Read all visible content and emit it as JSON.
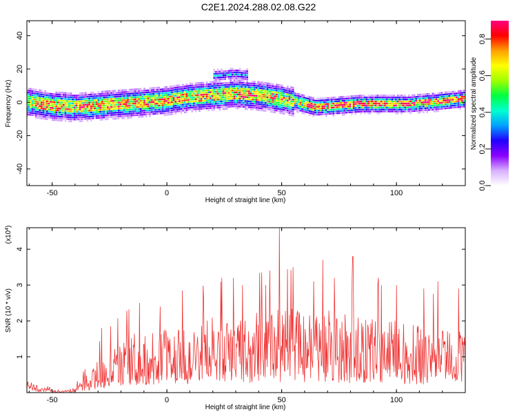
{
  "title": "C2E1.2024.288.02.08.G22",
  "chart_data": [
    {
      "type": "heatmap",
      "xlabel": "Height of straight line (km)",
      "ylabel": "Frequency (Hz)",
      "xlim": [
        -61,
        130
      ],
      "ylim": [
        -50,
        49
      ],
      "x_ticks": [
        -50,
        0,
        50,
        100
      ],
      "y_ticks": [
        -40,
        -20,
        0,
        20,
        40
      ],
      "x_tick_labels": [
        "-50",
        "0",
        "50",
        "100"
      ],
      "y_tick_labels": [
        "-40",
        "-20",
        "0",
        "20",
        "40"
      ],
      "colorbar": {
        "label": "Normalized spectral amplitude",
        "range": [
          0,
          0.9
        ],
        "ticks": [
          0.0,
          0.2,
          0.4,
          0.6,
          0.8
        ],
        "tick_labels": [
          "0.0",
          "0.2",
          "0.4",
          "0.6",
          "0.8"
        ],
        "colors": [
          "#ffffff",
          "#d8b0ff",
          "#8a00ff",
          "#2000ff",
          "#00a0ff",
          "#00ffd0",
          "#00ff40",
          "#a0ff00",
          "#ffff00",
          "#ffa000",
          "#ff0000",
          "#ff0080"
        ]
      },
      "trend_center": [
        {
          "x": -60,
          "y": 0
        },
        {
          "x": -50,
          "y": -2
        },
        {
          "x": -40,
          "y": -3
        },
        {
          "x": -30,
          "y": -2
        },
        {
          "x": -20,
          "y": -1
        },
        {
          "x": -10,
          "y": 0
        },
        {
          "x": 0,
          "y": 1
        },
        {
          "x": 10,
          "y": 3
        },
        {
          "x": 20,
          "y": 4
        },
        {
          "x": 30,
          "y": 5
        },
        {
          "x": 40,
          "y": 4
        },
        {
          "x": 50,
          "y": 2
        },
        {
          "x": 57,
          "y": 0
        },
        {
          "x": 65,
          "y": -3
        },
        {
          "x": 75,
          "y": -2
        },
        {
          "x": 85,
          "y": -1
        },
        {
          "x": 95,
          "y": -1
        },
        {
          "x": 105,
          "y": -1
        },
        {
          "x": 115,
          "y": 0
        },
        {
          "x": 130,
          "y": 2
        }
      ]
    },
    {
      "type": "line",
      "xlabel": "Height of straight line (km)",
      "ylabel": "SNR (10 * v/v)",
      "scale_label": "(x10",
      "scale_exp": "4",
      "scale_close": ")",
      "xlim": [
        -61,
        130
      ],
      "ylim": [
        0,
        4.6
      ],
      "x_ticks": [
        -50,
        0,
        50,
        100
      ],
      "y_ticks": [
        1,
        2,
        3,
        4
      ],
      "x_tick_labels": [
        "-50",
        "0",
        "50",
        "100"
      ],
      "y_tick_labels": [
        "1",
        "2",
        "3",
        "4"
      ],
      "line_color": "#ee3333",
      "envelope": [
        {
          "x": -61,
          "y": 0.35
        },
        {
          "x": -55,
          "y": 0.15
        },
        {
          "x": -45,
          "y": 0.05
        },
        {
          "x": -40,
          "y": 0.15
        },
        {
          "x": -35,
          "y": 0.5
        },
        {
          "x": -28,
          "y": 1.1
        },
        {
          "x": -20,
          "y": 1.5
        },
        {
          "x": -10,
          "y": 1.8
        },
        {
          "x": 0,
          "y": 1.9
        },
        {
          "x": 10,
          "y": 2.0
        },
        {
          "x": 20,
          "y": 2.1
        },
        {
          "x": 30,
          "y": 2.2
        },
        {
          "x": 40,
          "y": 2.3
        },
        {
          "x": 50,
          "y": 2.4
        },
        {
          "x": 60,
          "y": 2.3
        },
        {
          "x": 70,
          "y": 2.3
        },
        {
          "x": 80,
          "y": 2.2
        },
        {
          "x": 90,
          "y": 2.1
        },
        {
          "x": 100,
          "y": 2.0
        },
        {
          "x": 110,
          "y": 1.9
        },
        {
          "x": 120,
          "y": 1.9
        },
        {
          "x": 130,
          "y": 1.8
        }
      ],
      "peaks": [
        {
          "x": -28.5,
          "y": 1.8
        },
        {
          "x": -12,
          "y": 2.5
        },
        {
          "x": -3,
          "y": 2.4
        },
        {
          "x": 16,
          "y": 2.6
        },
        {
          "x": 24,
          "y": 3.2
        },
        {
          "x": 29,
          "y": 3.2
        },
        {
          "x": 33,
          "y": 3.0
        },
        {
          "x": 43,
          "y": 3.0
        },
        {
          "x": 49,
          "y": 4.6
        },
        {
          "x": 55,
          "y": 3.5
        },
        {
          "x": 64,
          "y": 3.1
        },
        {
          "x": 68,
          "y": 3.7
        },
        {
          "x": 73,
          "y": 3.2
        },
        {
          "x": 81,
          "y": 3.8
        },
        {
          "x": 92,
          "y": 3.2
        },
        {
          "x": 100,
          "y": 3.0
        },
        {
          "x": 112,
          "y": 2.9
        },
        {
          "x": 118,
          "y": 3.1
        },
        {
          "x": 127,
          "y": 2.9
        }
      ]
    }
  ]
}
